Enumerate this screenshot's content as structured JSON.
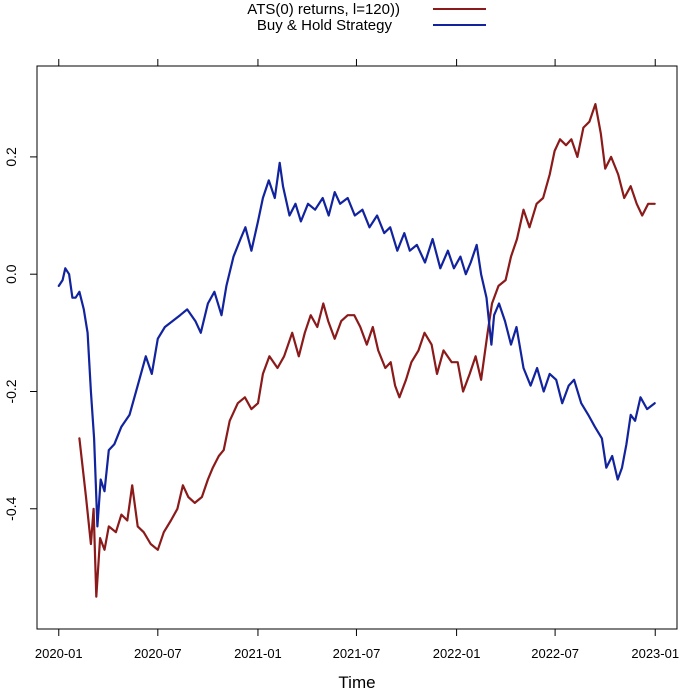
{
  "chart_data": {
    "type": "line",
    "title": "",
    "xlabel": "Time",
    "ylabel": "",
    "x_ticks": [
      "2020-01",
      "2020-07",
      "2021-01",
      "2021-07",
      "2022-01",
      "2022-07",
      "2023-01"
    ],
    "y_ticks": [
      "-0.4",
      "-0.2",
      "0.0",
      "0.2"
    ],
    "xlim": [
      "2019-11-22",
      "2023-02-10"
    ],
    "ylim": [
      -0.605,
      0.355
    ],
    "legend_position": "top",
    "series": [
      {
        "name": "ATS(0) returns, l=120))",
        "color": "#8B1A1A",
        "points": [
          [
            "2020-02-08",
            -0.28
          ],
          [
            "2020-02-20",
            -0.38
          ],
          [
            "2020-02-29",
            -0.46
          ],
          [
            "2020-03-05",
            -0.4
          ],
          [
            "2020-03-10",
            -0.55
          ],
          [
            "2020-03-17",
            -0.45
          ],
          [
            "2020-03-25",
            -0.47
          ],
          [
            "2020-04-02",
            -0.43
          ],
          [
            "2020-04-15",
            -0.44
          ],
          [
            "2020-04-25",
            -0.41
          ],
          [
            "2020-05-06",
            -0.42
          ],
          [
            "2020-05-15",
            -0.36
          ],
          [
            "2020-05-25",
            -0.43
          ],
          [
            "2020-06-05",
            -0.44
          ],
          [
            "2020-06-18",
            -0.46
          ],
          [
            "2020-07-01",
            -0.47
          ],
          [
            "2020-07-12",
            -0.44
          ],
          [
            "2020-07-25",
            -0.42
          ],
          [
            "2020-08-06",
            -0.4
          ],
          [
            "2020-08-16",
            -0.36
          ],
          [
            "2020-08-26",
            -0.38
          ],
          [
            "2020-09-07",
            -0.39
          ],
          [
            "2020-09-20",
            -0.38
          ],
          [
            "2020-10-01",
            -0.35
          ],
          [
            "2020-10-10",
            -0.33
          ],
          [
            "2020-10-21",
            -0.31
          ],
          [
            "2020-10-30",
            -0.3
          ],
          [
            "2020-11-10",
            -0.25
          ],
          [
            "2020-11-25",
            -0.22
          ],
          [
            "2020-12-08",
            -0.21
          ],
          [
            "2020-12-20",
            -0.23
          ],
          [
            "2021-01-01",
            -0.22
          ],
          [
            "2021-01-10",
            -0.17
          ],
          [
            "2021-01-22",
            -0.14
          ],
          [
            "2021-02-06",
            -0.16
          ],
          [
            "2021-02-18",
            -0.14
          ],
          [
            "2021-03-05",
            -0.1
          ],
          [
            "2021-03-17",
            -0.14
          ],
          [
            "2021-03-28",
            -0.1
          ],
          [
            "2021-04-08",
            -0.07
          ],
          [
            "2021-04-20",
            -0.09
          ],
          [
            "2021-05-01",
            -0.05
          ],
          [
            "2021-05-10",
            -0.08
          ],
          [
            "2021-05-22",
            -0.11
          ],
          [
            "2021-06-03",
            -0.08
          ],
          [
            "2021-06-15",
            -0.07
          ],
          [
            "2021-06-27",
            -0.07
          ],
          [
            "2021-07-08",
            -0.09
          ],
          [
            "2021-07-20",
            -0.12
          ],
          [
            "2021-07-31",
            -0.09
          ],
          [
            "2021-08-10",
            -0.13
          ],
          [
            "2021-08-23",
            -0.16
          ],
          [
            "2021-09-02",
            -0.15
          ],
          [
            "2021-09-10",
            -0.19
          ],
          [
            "2021-09-18",
            -0.21
          ],
          [
            "2021-09-30",
            -0.18
          ],
          [
            "2021-10-10",
            -0.15
          ],
          [
            "2021-10-23",
            -0.13
          ],
          [
            "2021-11-03",
            -0.1
          ],
          [
            "2021-11-16",
            -0.12
          ],
          [
            "2021-11-26",
            -0.17
          ],
          [
            "2021-12-08",
            -0.13
          ],
          [
            "2021-12-23",
            -0.15
          ],
          [
            "2022-01-03",
            -0.15
          ],
          [
            "2022-01-13",
            -0.2
          ],
          [
            "2022-01-25",
            -0.17
          ],
          [
            "2022-02-05",
            -0.14
          ],
          [
            "2022-02-15",
            -0.18
          ],
          [
            "2022-02-27",
            -0.1
          ],
          [
            "2022-03-07",
            -0.05
          ],
          [
            "2022-03-19",
            -0.02
          ],
          [
            "2022-04-01",
            -0.01
          ],
          [
            "2022-04-11",
            0.03
          ],
          [
            "2022-04-22",
            0.06
          ],
          [
            "2022-05-04",
            0.11
          ],
          [
            "2022-05-15",
            0.08
          ],
          [
            "2022-05-28",
            0.12
          ],
          [
            "2022-06-09",
            0.13
          ],
          [
            "2022-06-21",
            0.17
          ],
          [
            "2022-06-30",
            0.21
          ],
          [
            "2022-07-10",
            0.23
          ],
          [
            "2022-07-21",
            0.22
          ],
          [
            "2022-07-31",
            0.23
          ],
          [
            "2022-08-11",
            0.2
          ],
          [
            "2022-08-22",
            0.25
          ],
          [
            "2022-09-02",
            0.26
          ],
          [
            "2022-09-13",
            0.29
          ],
          [
            "2022-09-23",
            0.24
          ],
          [
            "2022-10-01",
            0.18
          ],
          [
            "2022-10-12",
            0.2
          ],
          [
            "2022-10-25",
            0.17
          ],
          [
            "2022-11-05",
            0.13
          ],
          [
            "2022-11-17",
            0.15
          ],
          [
            "2022-11-28",
            0.12
          ],
          [
            "2022-12-08",
            0.1
          ],
          [
            "2022-12-19",
            0.12
          ],
          [
            "2022-12-31",
            0.12
          ]
        ]
      },
      {
        "name": "Buy & Hold Strategy",
        "color": "#12239E",
        "points": [
          [
            "2020-01-01",
            -0.02
          ],
          [
            "2020-01-08",
            -0.01
          ],
          [
            "2020-01-13",
            0.01
          ],
          [
            "2020-01-20",
            0.0
          ],
          [
            "2020-01-26",
            -0.04
          ],
          [
            "2020-02-01",
            -0.04
          ],
          [
            "2020-02-08",
            -0.03
          ],
          [
            "2020-02-16",
            -0.06
          ],
          [
            "2020-02-23",
            -0.1
          ],
          [
            "2020-02-29",
            -0.2
          ],
          [
            "2020-03-06",
            -0.28
          ],
          [
            "2020-03-12",
            -0.43
          ],
          [
            "2020-03-18",
            -0.35
          ],
          [
            "2020-03-25",
            -0.37
          ],
          [
            "2020-04-02",
            -0.3
          ],
          [
            "2020-04-12",
            -0.29
          ],
          [
            "2020-04-25",
            -0.26
          ],
          [
            "2020-05-10",
            -0.24
          ],
          [
            "2020-05-25",
            -0.19
          ],
          [
            "2020-06-09",
            -0.14
          ],
          [
            "2020-06-20",
            -0.17
          ],
          [
            "2020-07-01",
            -0.11
          ],
          [
            "2020-07-14",
            -0.09
          ],
          [
            "2020-07-28",
            -0.08
          ],
          [
            "2020-08-11",
            -0.07
          ],
          [
            "2020-08-24",
            -0.06
          ],
          [
            "2020-09-08",
            -0.08
          ],
          [
            "2020-09-18",
            -0.1
          ],
          [
            "2020-10-01",
            -0.05
          ],
          [
            "2020-10-13",
            -0.03
          ],
          [
            "2020-10-26",
            -0.07
          ],
          [
            "2020-11-04",
            -0.02
          ],
          [
            "2020-11-17",
            0.03
          ],
          [
            "2020-11-30",
            0.06
          ],
          [
            "2020-12-09",
            0.08
          ],
          [
            "2020-12-20",
            0.04
          ],
          [
            "2021-01-01",
            0.09
          ],
          [
            "2021-01-10",
            0.13
          ],
          [
            "2021-01-21",
            0.16
          ],
          [
            "2021-02-01",
            0.13
          ],
          [
            "2021-02-10",
            0.19
          ],
          [
            "2021-02-16",
            0.15
          ],
          [
            "2021-02-28",
            0.1
          ],
          [
            "2021-03-11",
            0.12
          ],
          [
            "2021-03-21",
            0.09
          ],
          [
            "2021-04-03",
            0.12
          ],
          [
            "2021-04-16",
            0.11
          ],
          [
            "2021-04-30",
            0.13
          ],
          [
            "2021-05-11",
            0.1
          ],
          [
            "2021-05-22",
            0.14
          ],
          [
            "2021-06-01",
            0.12
          ],
          [
            "2021-06-15",
            0.13
          ],
          [
            "2021-06-28",
            0.1
          ],
          [
            "2021-07-12",
            0.11
          ],
          [
            "2021-07-25",
            0.08
          ],
          [
            "2021-08-08",
            0.1
          ],
          [
            "2021-08-21",
            0.07
          ],
          [
            "2021-09-01",
            0.08
          ],
          [
            "2021-09-14",
            0.04
          ],
          [
            "2021-09-27",
            0.07
          ],
          [
            "2021-10-07",
            0.04
          ],
          [
            "2021-10-20",
            0.05
          ],
          [
            "2021-11-04",
            0.02
          ],
          [
            "2021-11-18",
            0.06
          ],
          [
            "2021-12-02",
            0.01
          ],
          [
            "2021-12-16",
            0.04
          ],
          [
            "2021-12-27",
            0.01
          ],
          [
            "2022-01-08",
            0.03
          ],
          [
            "2022-01-18",
            0.0
          ],
          [
            "2022-01-27",
            0.02
          ],
          [
            "2022-02-07",
            0.05
          ],
          [
            "2022-02-15",
            0.0
          ],
          [
            "2022-02-25",
            -0.04
          ],
          [
            "2022-03-06",
            -0.12
          ],
          [
            "2022-03-11",
            -0.07
          ],
          [
            "2022-03-20",
            -0.05
          ],
          [
            "2022-03-31",
            -0.08
          ],
          [
            "2022-04-11",
            -0.12
          ],
          [
            "2022-04-21",
            -0.09
          ],
          [
            "2022-05-04",
            -0.16
          ],
          [
            "2022-05-17",
            -0.19
          ],
          [
            "2022-05-29",
            -0.16
          ],
          [
            "2022-06-10",
            -0.2
          ],
          [
            "2022-06-21",
            -0.17
          ],
          [
            "2022-07-03",
            -0.18
          ],
          [
            "2022-07-14",
            -0.22
          ],
          [
            "2022-07-26",
            -0.19
          ],
          [
            "2022-08-05",
            -0.18
          ],
          [
            "2022-08-18",
            -0.22
          ],
          [
            "2022-08-31",
            -0.24
          ],
          [
            "2022-09-12",
            -0.26
          ],
          [
            "2022-09-25",
            -0.28
          ],
          [
            "2022-10-03",
            -0.33
          ],
          [
            "2022-10-14",
            -0.31
          ],
          [
            "2022-10-24",
            -0.35
          ],
          [
            "2022-11-01",
            -0.33
          ],
          [
            "2022-11-09",
            -0.29
          ],
          [
            "2022-11-17",
            -0.24
          ],
          [
            "2022-11-25",
            -0.25
          ],
          [
            "2022-12-05",
            -0.21
          ],
          [
            "2022-12-17",
            -0.23
          ],
          [
            "2022-12-31",
            -0.22
          ]
        ]
      }
    ]
  }
}
